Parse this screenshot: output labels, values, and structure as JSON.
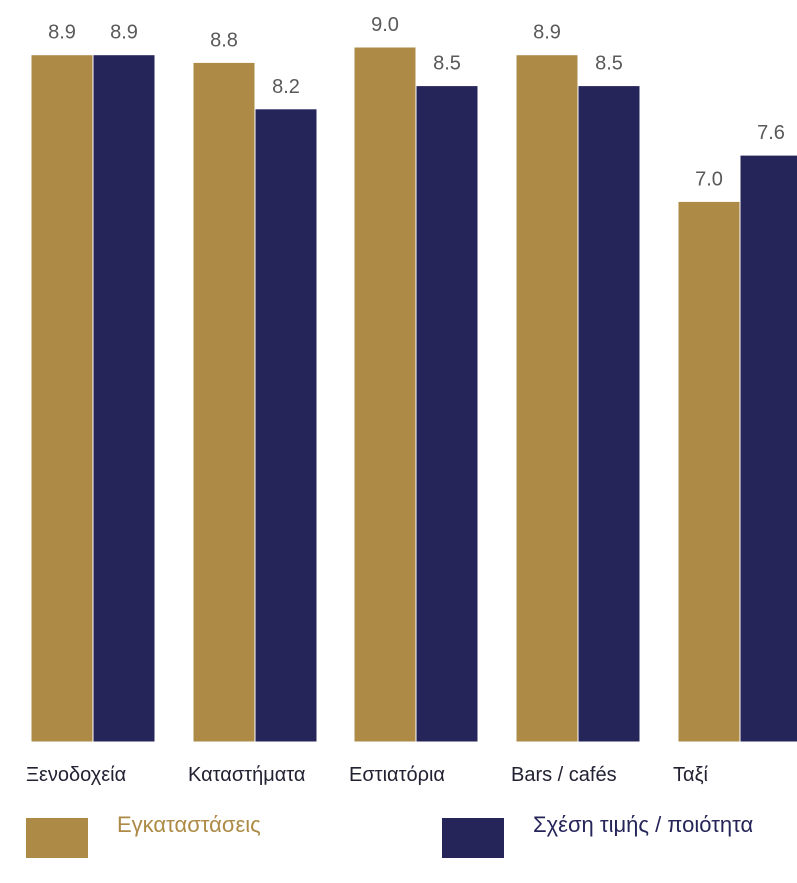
{
  "chart_data": {
    "type": "bar",
    "title": "",
    "xlabel": "",
    "ylabel": "",
    "ylim": [
      0,
      9.0
    ],
    "grid": false,
    "legend_position": "bottom",
    "categories": [
      "Ξενοδοχεία",
      "Καταστήματα",
      "Εστιατόρια",
      "Bars / cafés",
      "Ταξί"
    ],
    "series": [
      {
        "name": "Εγκαταστάσεις",
        "color": "#AD8B47",
        "values": [
          8.9,
          8.8,
          9.0,
          8.9,
          7.0
        ],
        "labels": [
          "8.9",
          "8.8",
          "9.0",
          "8.9",
          "7.0"
        ]
      },
      {
        "name": "Σχέση τιμής / ποιότητα",
        "color": "#25255A",
        "values": [
          8.9,
          8.2,
          8.5,
          8.5,
          7.6
        ],
        "labels": [
          "8.9",
          "8.2",
          "8.5",
          "8.5",
          "7.6"
        ]
      }
    ]
  }
}
